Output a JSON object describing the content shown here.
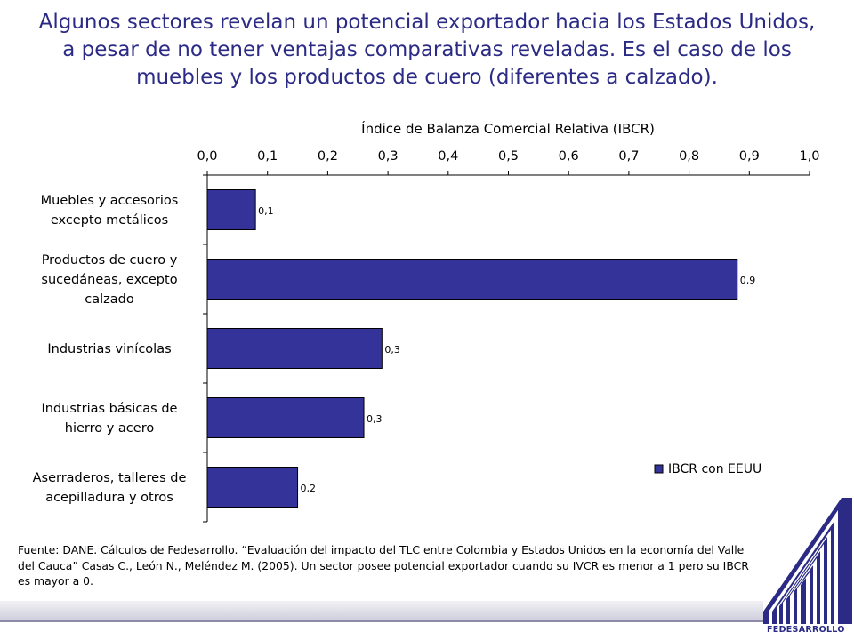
{
  "headline": "Algunos sectores revelan un potencial exportador hacia los Estados Unidos, a pesar de no tener ventajas comparativas reveladas. Es el caso de los muebles y los productos de cuero (diferentes a calzado).",
  "chart_data": {
    "type": "bar",
    "orientation": "horizontal",
    "title": "Índice de Balanza Comercial Relativa (IBCR)",
    "categories": [
      [
        "Muebles y accesorios",
        "excepto metálicos"
      ],
      [
        "Productos de cuero y",
        "sucedáneas, excepto",
        "calzado"
      ],
      [
        "Industrias vinícolas"
      ],
      [
        "Industrias básicas de",
        "hierro y acero"
      ],
      [
        "Aserraderos, talleres de",
        "acepilladura y otros"
      ]
    ],
    "series": [
      {
        "name": "IBCR con EEUU",
        "values": [
          0.08,
          0.88,
          0.29,
          0.26,
          0.15
        ],
        "labels": [
          "0,1",
          "0,9",
          "0,3",
          "0,3",
          "0,2"
        ],
        "color": "#33339a"
      }
    ],
    "xlim": [
      0,
      1
    ],
    "xticks": [
      "0,0",
      "0,1",
      "0,2",
      "0,3",
      "0,4",
      "0,5",
      "0,6",
      "0,7",
      "0,8",
      "0,9",
      "1,0"
    ],
    "axis_position": "top",
    "grid": false,
    "legend": "bottom-right"
  },
  "source_note": "Fuente: DANE. Cálculos de Fedesarrollo. “Evaluación del impacto del TLC entre Colombia y Estados Unidos en la economía del Valle del Cauca” Casas C., León N., Meléndez M. (2005). Un sector posee potencial exportador cuando su IVCR es menor a 1 pero su IBCR es mayor a 0.",
  "logo_text": "FEDESARROLLO",
  "colors": {
    "headline": "#2b2b86",
    "bar": "#33339a",
    "logo": "#2b2b86"
  }
}
